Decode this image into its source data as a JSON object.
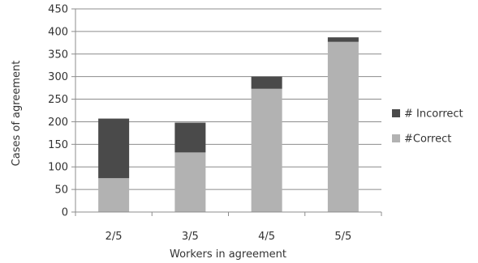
{
  "chart_data": {
    "type": "bar",
    "stacked": true,
    "title": "",
    "xlabel": "Workers in agreement",
    "ylabel": "Cases of agreement",
    "categories": [
      "2/5",
      "3/5",
      "4/5",
      "5/5"
    ],
    "series": [
      {
        "name": "#Correct",
        "color": "#b2b2b2",
        "values": [
          75,
          132,
          273,
          377
        ]
      },
      {
        "name": "# Incorrect",
        "color": "#4a4a4a",
        "values": [
          132,
          66,
          27,
          10
        ]
      }
    ],
    "ylim": [
      0,
      450
    ],
    "yticks": [
      0,
      50,
      100,
      150,
      200,
      250,
      300,
      350,
      400,
      450
    ],
    "grid": true,
    "legend_position": "right",
    "legend_order": [
      "# Incorrect",
      "#Correct"
    ]
  }
}
